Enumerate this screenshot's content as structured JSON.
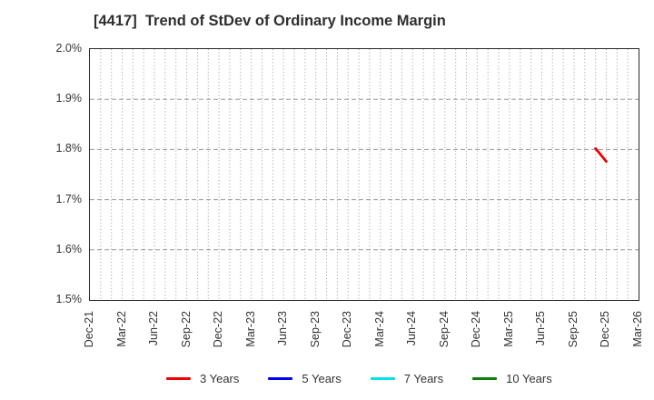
{
  "title": "[4417]  Trend of StDev of Ordinary Income Margin",
  "chart_data": {
    "type": "line",
    "title": "[4417]  Trend of StDev of Ordinary Income Margin",
    "xlabel": "",
    "ylabel": "",
    "ylim": [
      1.5,
      2.0
    ],
    "y_ticks": [
      {
        "value": 2.0,
        "label": "2.0%"
      },
      {
        "value": 1.9,
        "label": "1.9%"
      },
      {
        "value": 1.8,
        "label": "1.8%"
      },
      {
        "value": 1.7,
        "label": "1.7%"
      },
      {
        "value": 1.6,
        "label": "1.6%"
      },
      {
        "value": 1.5,
        "label": "1.5%"
      }
    ],
    "x_axis": {
      "start_month": "Dec-21",
      "end_month": "Mar-26",
      "months_total": 51,
      "tick_labels": [
        {
          "label": "Dec-21",
          "month_index": 0
        },
        {
          "label": "Mar-22",
          "month_index": 3
        },
        {
          "label": "Jun-22",
          "month_index": 6
        },
        {
          "label": "Sep-22",
          "month_index": 9
        },
        {
          "label": "Dec-22",
          "month_index": 12
        },
        {
          "label": "Mar-23",
          "month_index": 15
        },
        {
          "label": "Jun-23",
          "month_index": 18
        },
        {
          "label": "Sep-23",
          "month_index": 21
        },
        {
          "label": "Dec-23",
          "month_index": 24
        },
        {
          "label": "Mar-24",
          "month_index": 27
        },
        {
          "label": "Jun-24",
          "month_index": 30
        },
        {
          "label": "Sep-24",
          "month_index": 33
        },
        {
          "label": "Dec-24",
          "month_index": 36
        },
        {
          "label": "Mar-25",
          "month_index": 39
        },
        {
          "label": "Jun-25",
          "month_index": 42
        },
        {
          "label": "Sep-25",
          "month_index": 45
        },
        {
          "label": "Dec-25",
          "month_index": 48
        },
        {
          "label": "Mar-26",
          "month_index": 51
        }
      ]
    },
    "grid": {
      "horizontal_style": "dashed",
      "vertical_style": "dotted",
      "color": "#999999"
    },
    "legend_position": "bottom",
    "series": [
      {
        "name": "3 Years",
        "color": "#ee0000",
        "points": [
          {
            "month": "Nov-25",
            "month_index": 47,
            "value": 1.802
          },
          {
            "month": "Dec-25",
            "month_index": 48,
            "value": 1.776
          }
        ]
      },
      {
        "name": "5 Years",
        "color": "#0000ee",
        "points": []
      },
      {
        "name": "7 Years",
        "color": "#00e0e5",
        "points": []
      },
      {
        "name": "10 Years",
        "color": "#0e7d0e",
        "points": []
      }
    ]
  }
}
